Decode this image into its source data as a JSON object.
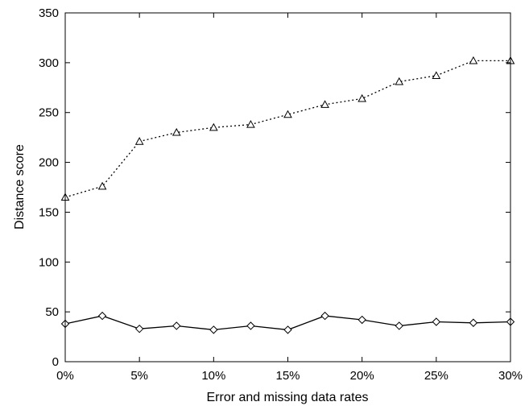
{
  "chart_data": {
    "type": "line",
    "xlabel": "Error and missing data rates",
    "ylabel": "Distance score",
    "xlim": [
      0,
      30
    ],
    "ylim": [
      0,
      350
    ],
    "x_ticks": [
      0,
      5,
      10,
      15,
      20,
      25,
      30
    ],
    "x_tick_labels": [
      "0%",
      "5%",
      "10%",
      "15%",
      "20%",
      "25%",
      "30%"
    ],
    "y_ticks": [
      0,
      50,
      100,
      150,
      200,
      250,
      300,
      350
    ],
    "y_tick_labels": [
      "0",
      "50",
      "100",
      "150",
      "200",
      "250",
      "300",
      "350"
    ],
    "grid": false,
    "x": [
      0,
      2.5,
      5,
      7.5,
      10,
      12.5,
      15,
      17.5,
      20,
      22.5,
      25,
      27.5,
      30
    ],
    "series": [
      {
        "values": [
          165,
          176,
          221,
          230,
          235,
          238,
          248,
          258,
          264,
          281,
          287,
          302,
          302
        ],
        "line_style": "dotted",
        "marker": "triangle",
        "color": "#000000"
      },
      {
        "values": [
          38,
          46,
          33,
          36,
          32,
          36,
          32,
          46,
          42,
          36,
          40,
          39,
          40
        ],
        "line_style": "solid",
        "marker": "diamond",
        "color": "#000000"
      }
    ]
  }
}
